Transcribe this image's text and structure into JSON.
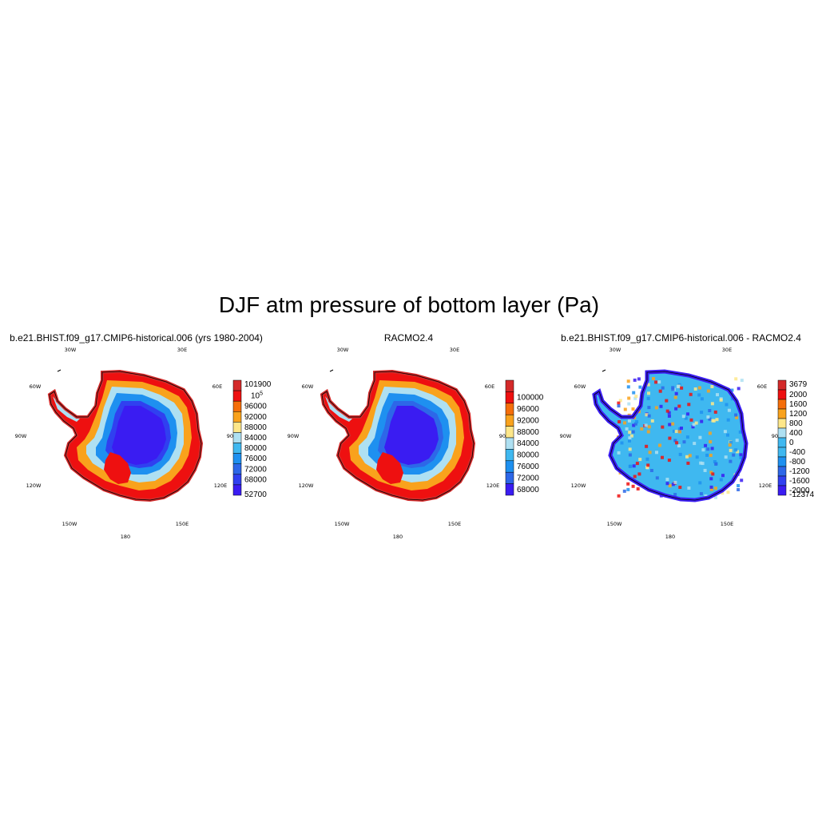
{
  "title": "DJF atm pressure of bottom layer (Pa)",
  "lon_labels": [
    "30W",
    "30E",
    "60W",
    "60E",
    "90W",
    "90E",
    "120W",
    "120E",
    "150W",
    "150E",
    "180"
  ],
  "panels": [
    {
      "title": "b.e21.BHIST.f09_g17.CMIP6-historical.006 (yrs 1980-2004)",
      "colorbar": {
        "labels": [
          "101900",
          "10^5",
          "96000",
          "92000",
          "88000",
          "84000",
          "80000",
          "76000",
          "72000",
          "68000",
          "52700"
        ],
        "colors": [
          "#d42a2a",
          "#ee1010",
          "#f56e0a",
          "#f9a21c",
          "#fde78a",
          "#aee0f2",
          "#3fb8f0",
          "#1e90f0",
          "#2d67e8",
          "#3040f0",
          "#3a1cf2"
        ]
      }
    },
    {
      "title": "RACMO2.4",
      "colorbar": {
        "labels": [
          "100000",
          "96000",
          "92000",
          "88000",
          "84000",
          "80000",
          "76000",
          "72000",
          "68000"
        ],
        "colors": [
          "#d42a2a",
          "#ee1010",
          "#f56e0a",
          "#f9a21c",
          "#fde78a",
          "#aee0f2",
          "#3fb8f0",
          "#1e90f0",
          "#2d67e8",
          "#3a1cf2"
        ]
      }
    },
    {
      "title": "b.e21.BHIST.f09_g17.CMIP6-historical.006 - RACMO2.4",
      "colorbar": {
        "labels": [
          "3679",
          "2000",
          "1600",
          "1200",
          "800",
          "400",
          "0",
          "-400",
          "-800",
          "-1200",
          "-1600",
          "-2000",
          "-12374"
        ],
        "colors": [
          "#d42a2a",
          "#ee1010",
          "#f56e0a",
          "#f9a21c",
          "#fde78a",
          "#aee0f2",
          "#3fb8f0",
          "#3fb8f0",
          "#1e90f0",
          "#2d67e8",
          "#3040f0",
          "#3a1cf2"
        ]
      }
    }
  ]
}
